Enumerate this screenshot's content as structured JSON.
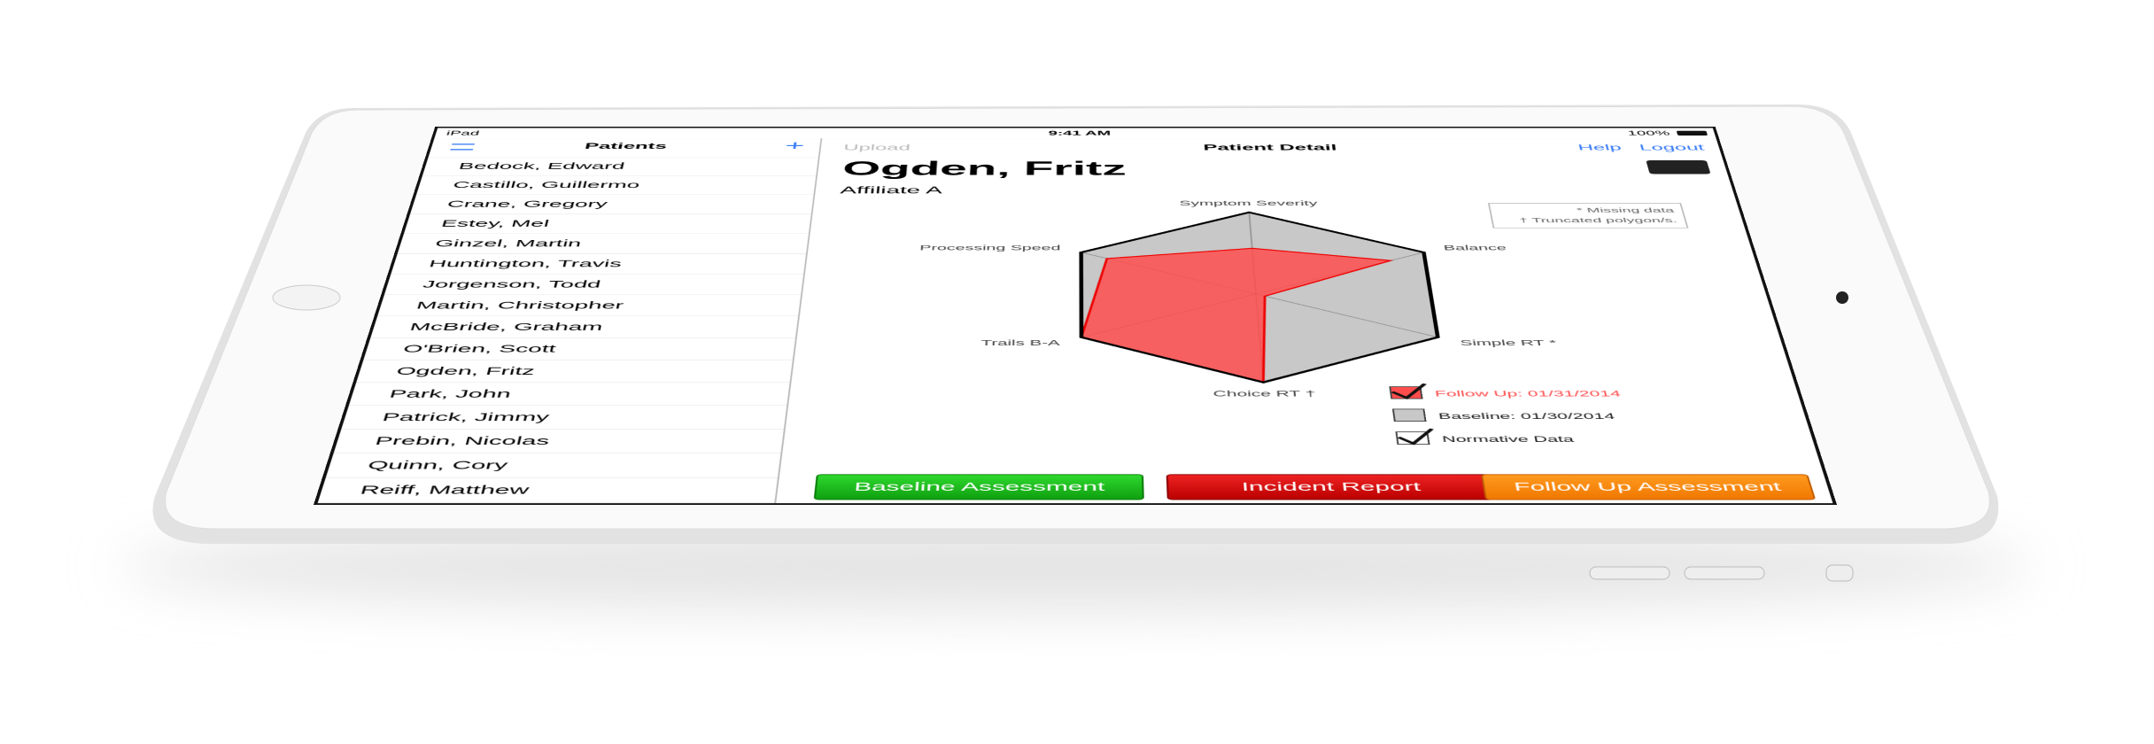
{
  "status_bar": {
    "device": "iPad",
    "time": "9:41 AM",
    "battery": "100%"
  },
  "sidebar": {
    "title": "Patients",
    "patients": [
      "Bedock, Edward",
      "Castillo, Guillermo",
      "Crane, Gregory",
      "Estey, Mel",
      "Ginzel, Martin",
      "Huntington, Travis",
      "Jorgenson, Todd",
      "Martin, Christopher",
      "McBride, Graham",
      "O'Brien, Scott",
      "Ogden, Fritz",
      "Park, John",
      "Patrick, Jimmy",
      "Prebin, Nicolas",
      "Quinn, Cory",
      "Reiff, Matthew"
    ]
  },
  "detail": {
    "upload": "Upload",
    "title": "Patient Detail",
    "help": "Help",
    "logout": "Logout",
    "patient_name": "Ogden, Fritz",
    "affiliate": "Affiliate A",
    "notes": [
      "* Missing data",
      "† Truncated polygon/s."
    ],
    "buttons": [
      "Baseline Assessment",
      "Incident Report",
      "Follow Up Assessment"
    ]
  },
  "chart_data": {
    "type": "radar",
    "axes": [
      "Symptom Severity",
      "Balance",
      "Simple RT *",
      "Choice RT †",
      "Trails B-A",
      "Processing Speed"
    ],
    "rlim": [
      0,
      1
    ],
    "series": [
      {
        "name": "Baseline: 01/30/2014",
        "color": "#c8c8c8",
        "values": [
          1,
          1,
          1,
          1,
          1,
          1
        ]
      },
      {
        "name": "Follow Up: 01/31/2014",
        "color": "#ff4d4d",
        "values": [
          0.55,
          0.8,
          0.05,
          1,
          1,
          0.85
        ]
      },
      {
        "name": "Normative Data",
        "color": "#000000",
        "values": [
          1,
          1,
          1,
          1,
          1,
          1
        ]
      }
    ]
  }
}
